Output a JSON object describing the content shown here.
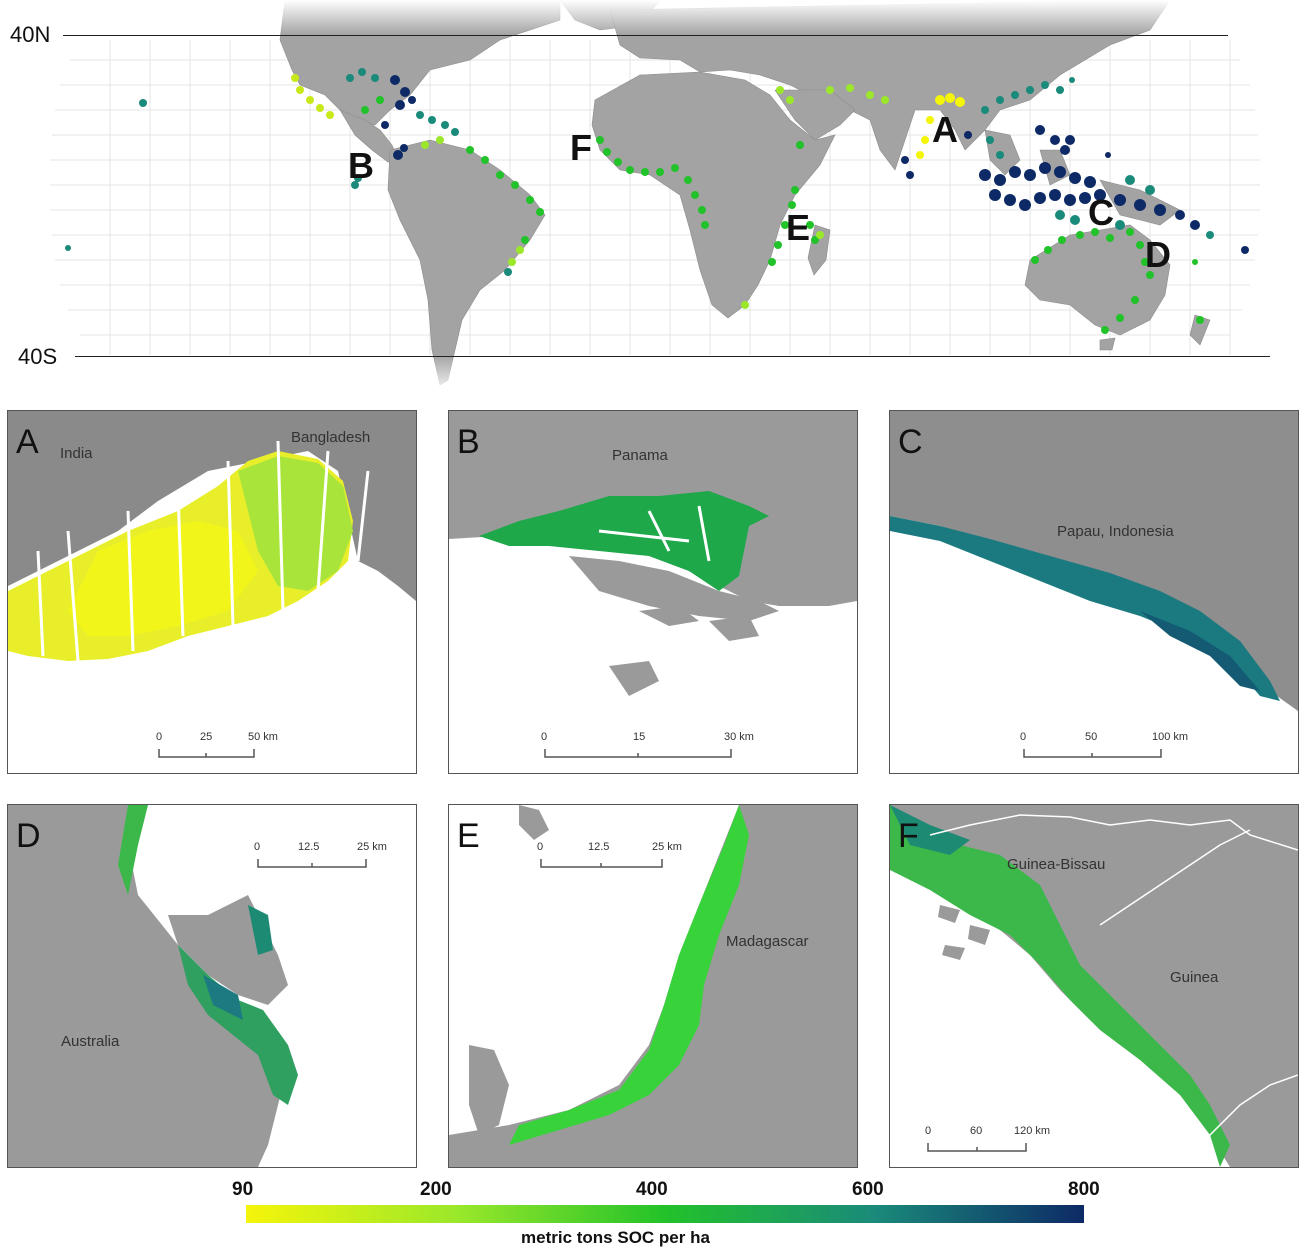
{
  "world_map": {
    "lat_labels": {
      "north": "40N",
      "south": "40S"
    },
    "region_markers": [
      "A",
      "B",
      "C",
      "D",
      "E",
      "F"
    ]
  },
  "panels": [
    {
      "letter": "A",
      "places": [
        "India",
        "Bangladesh"
      ],
      "scale": [
        "0",
        "25",
        "50 km"
      ]
    },
    {
      "letter": "B",
      "places": [
        "Panama"
      ],
      "scale": [
        "0",
        "15",
        "30 km"
      ]
    },
    {
      "letter": "C",
      "places": [
        "Papau, Indonesia"
      ],
      "scale": [
        "0",
        "50",
        "100 km"
      ]
    },
    {
      "letter": "D",
      "places": [
        "Australia"
      ],
      "scale": [
        "0",
        "12.5",
        "25 km"
      ]
    },
    {
      "letter": "E",
      "places": [
        "Madagascar"
      ],
      "scale": [
        "0",
        "12.5",
        "25 km"
      ]
    },
    {
      "letter": "F",
      "places": [
        "Guinea-Bissau",
        "Guinea"
      ],
      "scale": [
        "0",
        "60",
        "120 km"
      ]
    }
  ],
  "legend": {
    "ticks": [
      "90",
      "200",
      "400",
      "600",
      "800"
    ],
    "title": "metric tons SOC per ha",
    "colors": [
      "#f5f50a",
      "#9be82a",
      "#22c22a",
      "#1a8a7a",
      "#0d2a66"
    ]
  }
}
